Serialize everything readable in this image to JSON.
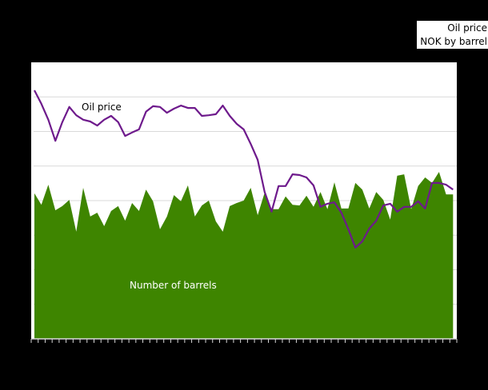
{
  "legend": {
    "line1": "Oil price",
    "line2": "NOK by barrel"
  },
  "colors": {
    "background": "#000000",
    "plot_background": "#ffffff",
    "gridline": "#d9d9d9",
    "barrels_area": "#3e8500",
    "oil_price_line": "#6e1a8c",
    "axis": "#d9d9d9"
  },
  "annotations": {
    "oil_price_label": "Oil price",
    "barrels_label": "Number of barrels"
  },
  "chart_data": {
    "type": "area",
    "title": "",
    "xlabel": "",
    "ylabel": "",
    "y_unit_note": "values in gridline units (axis tick labels not visible)",
    "ylim": [
      0,
      8
    ],
    "grid": true,
    "x_ticks_count": 62,
    "legend_position": "top-right",
    "x": [
      1,
      2,
      3,
      4,
      5,
      6,
      7,
      8,
      9,
      10,
      11,
      12,
      13,
      14,
      15,
      16,
      17,
      18,
      19,
      20,
      21,
      22,
      23,
      24,
      25,
      26,
      27,
      28,
      29,
      30,
      31,
      32,
      33,
      34,
      35,
      36,
      37,
      38,
      39,
      40,
      41,
      42,
      43,
      44,
      45,
      46,
      47,
      48,
      49,
      50,
      51,
      52,
      53,
      54,
      55,
      56,
      57,
      58,
      59,
      60,
      61
    ],
    "series": [
      {
        "name": "Number of barrels",
        "type": "area",
        "values": [
          4.21,
          3.88,
          4.46,
          3.72,
          3.84,
          4.02,
          3.1,
          4.37,
          3.54,
          3.65,
          3.26,
          3.7,
          3.84,
          3.42,
          3.93,
          3.7,
          4.32,
          3.98,
          3.17,
          3.54,
          4.16,
          3.98,
          4.44,
          3.54,
          3.86,
          4.0,
          3.4,
          3.1,
          3.84,
          3.93,
          4.0,
          4.37,
          3.58,
          4.23,
          3.75,
          3.75,
          4.12,
          3.88,
          3.86,
          4.14,
          3.82,
          4.25,
          3.75,
          4.53,
          3.77,
          3.77,
          4.51,
          4.32,
          3.77,
          4.25,
          4.02,
          3.45,
          4.72,
          4.76,
          3.75,
          4.42,
          4.67,
          4.51,
          4.83,
          4.18,
          4.18
        ]
      },
      {
        "name": "Oil price",
        "type": "line",
        "values": [
          7.19,
          6.8,
          6.34,
          5.73,
          6.27,
          6.71,
          6.47,
          6.34,
          6.29,
          6.17,
          6.34,
          6.45,
          6.27,
          5.87,
          5.97,
          6.06,
          6.57,
          6.73,
          6.71,
          6.54,
          6.66,
          6.75,
          6.68,
          6.68,
          6.45,
          6.47,
          6.5,
          6.75,
          6.45,
          6.22,
          6.06,
          5.64,
          5.18,
          4.25,
          3.68,
          4.42,
          4.42,
          4.76,
          4.74,
          4.67,
          4.44,
          3.82,
          3.91,
          3.95,
          3.65,
          3.17,
          2.64,
          2.82,
          3.19,
          3.42,
          3.86,
          3.91,
          3.68,
          3.82,
          3.82,
          3.98,
          3.77,
          4.51,
          4.51,
          4.46,
          4.32
        ]
      }
    ]
  }
}
